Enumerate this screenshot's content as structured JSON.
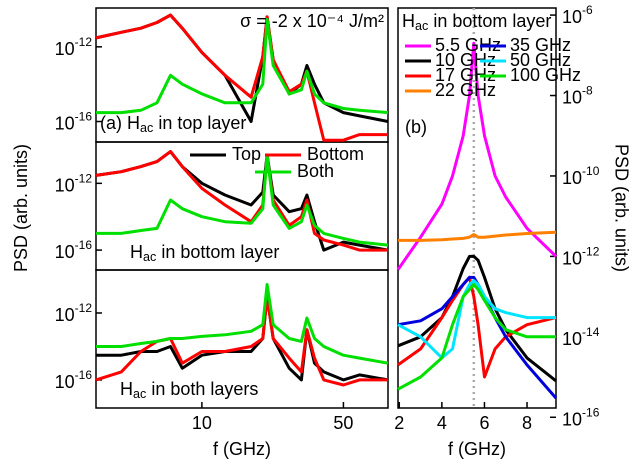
{
  "chart_data": [
    {
      "type": "line",
      "annotation": "σ = -2 x 10⁻⁴ J/m²",
      "panel_label": "(a) Hac in top layer",
      "xscale": "log",
      "yscale": "log",
      "xlim": [
        3,
        83
      ],
      "ylim": [
        8e-18,
        1.2e-10
      ],
      "yticks": [
        {
          "value": 1e-12,
          "label": "10-12"
        },
        {
          "value": 1e-16,
          "label": "10-16"
        }
      ],
      "x": [
        3,
        4,
        5,
        6,
        7,
        8,
        10,
        13,
        17.5,
        20,
        21,
        22.5,
        27,
        31,
        33,
        36,
        40,
        50,
        60,
        83
      ],
      "series": [
        {
          "color": "#000000",
          "values": [
            3e-12,
            6e-12,
            1e-11,
            2e-11,
            5e-11,
            1e-11,
            5e-13,
            3e-14,
            1e-16,
            3e-13,
            4e-11,
            2e-13,
            3e-15,
            1e-14,
            1e-13,
            1e-14,
            1e-15,
            3e-16,
            2e-16,
            1e-16
          ]
        },
        {
          "color": "#ff0000",
          "values": [
            3e-12,
            6e-12,
            1e-11,
            2e-11,
            5e-11,
            1e-11,
            5e-13,
            3e-14,
            2e-15,
            3e-13,
            4e-11,
            2e-13,
            4e-15,
            1e-14,
            5e-14,
            1e-15,
            1e-17,
            1e-17,
            2e-17,
            2e-17
          ]
        },
        {
          "color": "#00e000",
          "values": [
            3e-16,
            3e-16,
            4e-16,
            1e-15,
            3e-14,
            1e-14,
            3e-15,
            1e-15,
            1e-15,
            1e-14,
            3e-11,
            1e-13,
            3e-15,
            5e-15,
            5e-14,
            3e-15,
            1e-15,
            5e-16,
            4e-16,
            3e-16
          ]
        }
      ]
    },
    {
      "type": "line",
      "panel_label": "Hac in bottom layer",
      "xscale": "log",
      "yscale": "log",
      "xlim": [
        3,
        83
      ],
      "ylim": [
        6.4e-18,
        3e-10
      ],
      "yticks": [
        {
          "value": 1e-12,
          "label": "10-12"
        },
        {
          "value": 1e-16,
          "label": "10-16"
        }
      ],
      "x": [
        3,
        4,
        5,
        6,
        7,
        8,
        10,
        13,
        17.5,
        20,
        21,
        22.5,
        27,
        31,
        33,
        36,
        40,
        50,
        60,
        83
      ],
      "series": [
        {
          "name": "Top",
          "color": "#000000",
          "values": [
            3e-12,
            5e-12,
            1e-11,
            2e-11,
            8e-11,
            1e-11,
            1e-12,
            2e-13,
            5e-14,
            3e-13,
            5e-11,
            2e-13,
            2e-14,
            3e-14,
            2e-13,
            5e-15,
            1e-16,
            3e-16,
            2e-16,
            1e-16
          ]
        },
        {
          "name": "Bottom",
          "color": "#ff0000",
          "values": [
            3e-12,
            5e-12,
            1e-11,
            2e-11,
            8e-11,
            1e-11,
            5e-13,
            5e-14,
            5e-15,
            5e-14,
            4e-11,
            1e-13,
            3e-15,
            1e-14,
            1e-13,
            1e-15,
            4e-16,
            2e-16,
            1e-16,
            1e-16
          ]
        },
        {
          "name": "Both",
          "color": "#00e000",
          "values": [
            1e-15,
            1e-15,
            1.5e-15,
            2e-15,
            1e-13,
            3e-14,
            1e-14,
            5e-15,
            4e-15,
            3e-14,
            5e-11,
            5e-14,
            2e-15,
            5e-15,
            5e-14,
            3e-15,
            1e-15,
            5e-16,
            3e-16,
            2e-16
          ]
        }
      ]
    },
    {
      "type": "line",
      "panel_label": "Hac in both layers",
      "xlabel": "f (GHz)",
      "ylabel": "PSD (arb. units)",
      "xscale": "log",
      "yscale": "log",
      "xlim": [
        3,
        83
      ],
      "ylim": [
        2.1e-18,
        3.7e-10
      ],
      "xticks": [
        10,
        50
      ],
      "yticks": [
        {
          "value": 1e-12,
          "label": "10-12"
        },
        {
          "value": 1e-16,
          "label": "10-16"
        }
      ],
      "x": [
        3,
        4,
        5,
        6,
        7,
        8,
        10,
        13,
        17.5,
        20,
        21,
        22.5,
        27,
        31,
        33,
        36,
        40,
        50,
        60,
        83
      ],
      "series": [
        {
          "color": "#000000",
          "values": [
            3e-15,
            3e-15,
            5e-15,
            5e-15,
            1e-14,
            5e-16,
            3e-15,
            5e-15,
            5e-15,
            3e-14,
            1e-11,
            3e-14,
            5e-16,
            1e-16,
            1e-13,
            1e-15,
            3e-16,
            1e-16,
            2e-16,
            1e-16
          ]
        },
        {
          "color": "#ff0000",
          "values": [
            1e-16,
            3e-16,
            5e-15,
            2e-14,
            3e-14,
            1e-15,
            5e-15,
            5e-15,
            1e-14,
            3e-14,
            1e-11,
            3e-14,
            2e-15,
            3e-16,
            1e-13,
            2e-15,
            1e-16,
            5e-17,
            1e-16,
            1e-16
          ]
        },
        {
          "color": "#00e000",
          "values": [
            1e-14,
            1e-14,
            1.5e-14,
            2e-14,
            3e-14,
            3e-14,
            4e-14,
            5e-14,
            8e-14,
            2e-13,
            5e-11,
            2e-13,
            3e-14,
            2e-14,
            5e-13,
            3e-14,
            1e-14,
            3e-15,
            2e-15,
            1e-15
          ]
        }
      ]
    },
    {
      "type": "line",
      "panel_label": "(b)",
      "legend_title": "Hac in bottom layer",
      "xlabel": "f (GHz)",
      "ylabel": "PSD (arb. units)",
      "xscale": "linear",
      "yscale": "log",
      "xlim": [
        1.94,
        9.36
      ],
      "ylim": [
        1.7e-16,
        1.5e-06
      ],
      "vline": 5.5,
      "xticks": [
        2,
        4,
        6,
        8
      ],
      "yticks": [
        {
          "value": 1e-06,
          "label": "10-6"
        },
        {
          "value": 1e-08,
          "label": "10-8"
        },
        {
          "value": 1e-10,
          "label": "10-10"
        },
        {
          "value": 1e-12,
          "label": "10-12"
        },
        {
          "value": 1e-14,
          "label": "10-14"
        },
        {
          "value": 1e-16,
          "label": "10-16"
        }
      ],
      "x": [
        1.94,
        3,
        4,
        4.5,
        5,
        5.3,
        5.5,
        5.7,
        6,
        6.5,
        7,
        8,
        9.36
      ],
      "series": [
        {
          "name": "5.5 GHz",
          "color": "#ff00ff",
          "values": [
            4.7e-13,
            3e-12,
            2e-11,
            1e-10,
            1e-09,
            1e-08,
            2e-07,
            1e-08,
            1e-09,
            1e-10,
            3e-11,
            5e-12,
            1e-12
          ]
        },
        {
          "name": "10 GHz",
          "color": "#000000",
          "values": [
            6e-15,
            1e-14,
            3e-14,
            1e-13,
            5e-13,
            1e-12,
            1e-12,
            8e-13,
            3e-13,
            5e-14,
            1.5e-14,
            3e-15,
            8e-16
          ]
        },
        {
          "name": "17 GHz",
          "color": "#ff0000",
          "values": [
            2e-15,
            5e-15,
            3e-14,
            8e-14,
            2e-13,
            3e-13,
            1e-13,
            2e-14,
            1e-15,
            5e-15,
            1e-14,
            2e-14,
            3e-14
          ]
        },
        {
          "name": "22 GHz",
          "color": "#ff8000",
          "values": [
            2.5e-12,
            2.5e-12,
            2.6e-12,
            2.7e-12,
            2.8e-12,
            3e-12,
            3.5e-12,
            3e-12,
            3e-12,
            3.2e-12,
            3.4e-12,
            3.7e-12,
            4e-12
          ]
        },
        {
          "name": "35 GHz",
          "color": "#0000dd",
          "values": [
            2e-14,
            2.5e-14,
            5e-14,
            1e-13,
            2e-13,
            3e-13,
            3e-13,
            2e-13,
            1e-13,
            3e-14,
            1e-14,
            2e-15,
            3e-16
          ]
        },
        {
          "name": "50 GHz",
          "color": "#00e5ff",
          "values": [
            2e-14,
            1e-14,
            3e-15,
            5e-15,
            1e-13,
            2e-13,
            2.5e-13,
            2e-13,
            1e-13,
            5e-14,
            4e-14,
            3e-14,
            3e-14
          ]
        },
        {
          "name": "100 GHz",
          "color": "#00e000",
          "values": [
            5e-16,
            1e-15,
            3e-15,
            2e-14,
            1e-13,
            1.5e-13,
            2e-13,
            1.5e-13,
            8e-14,
            3e-14,
            1.5e-14,
            1e-14,
            1e-14
          ]
        }
      ]
    }
  ]
}
